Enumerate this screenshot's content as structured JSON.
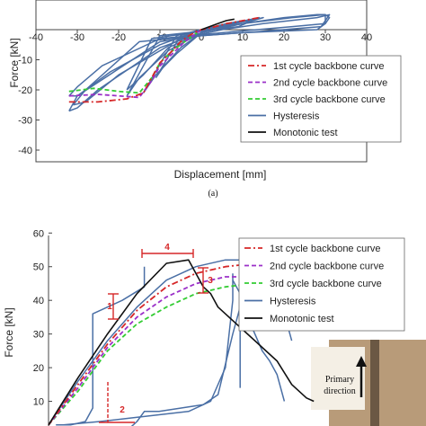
{
  "chart_data": [
    {
      "type": "line",
      "panel": "a",
      "caption": "(a)",
      "xlabel": "Displacement [mm]",
      "ylabel": "Force [kN]",
      "xlim": [
        -40,
        40
      ],
      "ylim": [
        -40,
        0
      ],
      "xticks": [
        -40,
        -30,
        -20,
        -10,
        0,
        10,
        20,
        30,
        40
      ],
      "yticks": [
        -10,
        -20,
        -30,
        -40
      ],
      "grid": false,
      "legend_position": "bottom-right",
      "series": [
        {
          "name": "1st cycle backbone curve",
          "color": "#d62728",
          "dash": "dash-dot",
          "x": [
            -32,
            -25,
            -18,
            -14,
            -12,
            -10,
            -7,
            -5,
            -3,
            -1,
            0,
            2,
            6,
            10,
            14
          ],
          "y": [
            -24,
            -24,
            -23,
            -21,
            -16,
            -11,
            -7,
            -4,
            -2,
            -0.5,
            0,
            0.5,
            2,
            3,
            4
          ]
        },
        {
          "name": "2nd cycle backbone curve",
          "color": "#9b30c8",
          "dash": "dash",
          "x": [
            -32,
            -25,
            -20,
            -15,
            -12,
            -10,
            -7,
            -4,
            -1,
            0
          ],
          "y": [
            -22,
            -21.5,
            -22,
            -22.5,
            -17,
            -12,
            -8,
            -4,
            -1,
            0
          ]
        },
        {
          "name": "3rd cycle backbone curve",
          "color": "#33cc33",
          "dash": "dash",
          "x": [
            -32,
            -26,
            -20,
            -15,
            -12,
            -10,
            -7,
            -4,
            -1,
            0
          ],
          "y": [
            -20.5,
            -19.5,
            -20.5,
            -21,
            -16,
            -11,
            -7,
            -4,
            -1,
            0
          ]
        },
        {
          "name": "Hysteresis",
          "color": "#4a6fa5",
          "dash": "solid",
          "loops": [
            {
              "x": [
                -32,
                -30,
                -25,
                -10,
                0,
                10,
                20,
                28,
                30,
                30,
                28,
                10,
                0,
                -10,
                -30,
                -32
              ],
              "y": [
                -27,
                -26,
                -20,
                -6,
                -1,
                2,
                4,
                5,
                5,
                2,
                0,
                -1,
                -2,
                -4,
                -22,
                -27
              ]
            },
            {
              "x": [
                -31,
                -28,
                -20,
                -5,
                5,
                15,
                28,
                31,
                29,
                15,
                0,
                -15,
                -28,
                -31
              ],
              "y": [
                -25,
                -24,
                -15,
                -3,
                0,
                2,
                4,
                5,
                1,
                -0.5,
                -2,
                -4,
                -20,
                -25
              ]
            },
            {
              "x": [
                -32,
                -30,
                -22,
                -10,
                0,
                10,
                22,
                30,
                31,
                30,
                22,
                5,
                -10,
                -24,
                -30,
                -32
              ],
              "y": [
                -22,
                -22,
                -14,
                -5,
                0,
                2,
                4,
                5,
                4,
                2,
                1,
                -1,
                -3,
                -12,
                -19,
                -22
              ]
            },
            {
              "x": [
                -18,
                -15,
                -8,
                0,
                8,
                15,
                10,
                0,
                -10,
                -18
              ],
              "y": [
                -22,
                -16,
                -7,
                -1,
                2,
                4,
                2,
                -0.5,
                -2,
                -22
              ]
            },
            {
              "x": [
                -18,
                -14,
                -8,
                0,
                7,
                14,
                9,
                0,
                -12,
                -18
              ],
              "y": [
                -20,
                -15,
                -6,
                -1,
                2,
                4,
                1,
                -0.5,
                -3,
                -20
              ]
            },
            {
              "x": [
                -14,
                -11,
                -6,
                0,
                6,
                10,
                6,
                0,
                -6,
                -14
              ],
              "y": [
                -21,
                -15,
                -8,
                -1,
                1,
                3,
                2,
                0,
                -2,
                -21
              ]
            },
            {
              "x": [
                -11,
                -9,
                -5,
                0,
                4,
                8,
                4,
                0,
                -5,
                -11
              ],
              "y": [
                -16,
                -12,
                -6,
                -1,
                1,
                2,
                1,
                0,
                -2,
                -16
              ]
            }
          ]
        },
        {
          "name": "Monotonic test",
          "color": "#111111",
          "dash": "solid",
          "x": [
            0,
            2,
            4,
            6,
            8
          ],
          "y": [
            0,
            1,
            2,
            3,
            3.5
          ]
        }
      ]
    },
    {
      "type": "line",
      "panel": "b",
      "xlabel": "",
      "ylabel": "Force [kN]",
      "ylim": [
        0,
        60
      ],
      "yticks": [
        10,
        20,
        30,
        40,
        50,
        60
      ],
      "grid": false,
      "legend_position": "top-right",
      "annotations": [
        "1",
        "2",
        "3",
        "4"
      ],
      "inset_label": "Primary direction",
      "series": [
        {
          "name": "1st cycle backbone curve",
          "color": "#d62728",
          "dash": "dash-dot",
          "x": [
            0,
            8,
            16,
            24,
            32,
            40,
            48,
            56,
            60
          ],
          "y": [
            3,
            15,
            27,
            37,
            44,
            48,
            50,
            51,
            50
          ]
        },
        {
          "name": "2nd cycle backbone curve",
          "color": "#9b30c8",
          "dash": "dash",
          "x": [
            0,
            8,
            16,
            24,
            32,
            40,
            48,
            56,
            60
          ],
          "y": [
            3,
            14,
            26,
            35,
            41,
            45,
            47,
            47,
            45
          ]
        },
        {
          "name": "3rd cycle backbone curve",
          "color": "#33cc33",
          "dash": "dash",
          "x": [
            0,
            8,
            16,
            24,
            32,
            40,
            48,
            56,
            60
          ],
          "y": [
            3,
            13,
            25,
            33,
            38,
            42,
            44,
            45,
            44
          ]
        },
        {
          "name": "Hysteresis",
          "color": "#4a6fa5",
          "dash": "solid",
          "loops": [
            {
              "x": [
                0,
                8,
                16,
                24,
                32,
                40,
                48,
                56,
                60,
                62,
                64,
                66
              ],
              "y": [
                3,
                16,
                28,
                38,
                46,
                50,
                52,
                52,
                50,
                44,
                36,
                28
              ]
            },
            {
              "x": [
                2,
                6,
                10,
                12,
                12,
                20,
                26,
                26
              ],
              "y": [
                3,
                3,
                4,
                8,
                36,
                40,
                44,
                50
              ]
            },
            {
              "x": [
                20,
                22,
                24,
                26,
                30,
                36,
                42,
                46,
                50,
                52,
                52,
                52
              ],
              "y": [
                0,
                2,
                4,
                7,
                7,
                8,
                9,
                12,
                30,
                38,
                50,
                14
              ]
            },
            {
              "x": [
                4,
                14,
                22,
                30,
                38,
                44,
                48,
                50,
                50
              ],
              "y": [
                3,
                4,
                5,
                6,
                7,
                10,
                20,
                40,
                48
              ]
            },
            {
              "x": [
                50,
                52,
                54,
                56,
                58,
                60,
                62,
                64
              ],
              "y": [
                46,
                42,
                35,
                30,
                25,
                22,
                18,
                10
              ]
            }
          ]
        },
        {
          "name": "Monotonic test",
          "color": "#111111",
          "dash": "solid",
          "x": [
            0,
            8,
            16,
            24,
            32,
            38,
            42,
            44,
            46,
            48,
            50,
            54,
            58,
            62,
            66,
            70,
            72
          ],
          "y": [
            3,
            17,
            30,
            42,
            51,
            52,
            44,
            42,
            38,
            36,
            34,
            30,
            26,
            22,
            15,
            11,
            10
          ]
        }
      ]
    }
  ]
}
